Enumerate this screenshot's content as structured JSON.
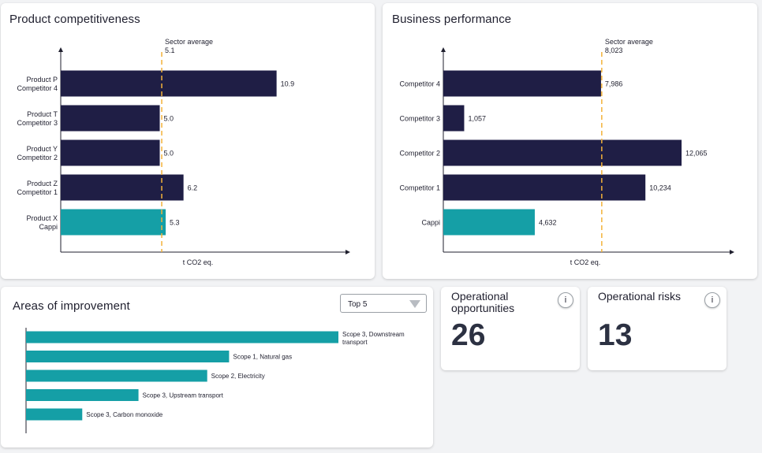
{
  "product_card": {
    "title": "Product competitiveness",
    "axis_label": "t CO2 eq.",
    "sector_label": "Sector average",
    "sector_value": "5.1"
  },
  "business_card": {
    "title": "Business performance",
    "axis_label": "t CO2 eq.",
    "sector_label": "Sector average",
    "sector_value": "8,023"
  },
  "improvement_card": {
    "title": "Areas of improvement",
    "dropdown_value": "Top 5"
  },
  "kpis": {
    "opportunities": {
      "label": "Operational opportunities",
      "value": "26",
      "info": "i"
    },
    "risks": {
      "label": "Operational risks",
      "value": "13",
      "info": "i"
    }
  },
  "colors": {
    "dark_bar": "#1f1e45",
    "teal_bar": "#159fa6",
    "sector_line": "#f3b23a"
  },
  "chart_data": [
    {
      "type": "bar",
      "orientation": "horizontal",
      "title": "Product competitiveness",
      "xlabel": "t CO2 eq.",
      "categories": [
        [
          "Product P",
          "Competitor 4"
        ],
        [
          "Product T",
          "Competitor 3"
        ],
        [
          "Product Y",
          "Competitor 2"
        ],
        [
          "Product Z",
          "Competitor 1"
        ],
        [
          "Product X",
          "Cappi"
        ]
      ],
      "values": [
        10.9,
        5.0,
        5.0,
        6.2,
        5.3
      ],
      "value_labels": [
        "10.9",
        "5.0",
        "5.0",
        "6.2",
        "5.3"
      ],
      "highlight_index": 4,
      "reference_line": {
        "label": "Sector average",
        "value": 5.1
      },
      "xlim": [
        0,
        14.5
      ]
    },
    {
      "type": "bar",
      "orientation": "horizontal",
      "title": "Business performance",
      "xlabel": "t CO2 eq.",
      "categories": [
        [
          "Competitor 4"
        ],
        [
          "Competitor 3"
        ],
        [
          "Competitor 2"
        ],
        [
          "Competitor 1"
        ],
        [
          "Cappi"
        ]
      ],
      "values": [
        7986,
        1057,
        12065,
        10234,
        4632
      ],
      "value_labels": [
        "7,986",
        "1,057",
        "12,065",
        "10,234",
        "4,632"
      ],
      "highlight_index": 4,
      "reference_line": {
        "label": "Sector average",
        "value": 8023
      },
      "xlim": [
        0,
        14700
      ]
    },
    {
      "type": "bar",
      "orientation": "horizontal",
      "title": "Areas of improvement",
      "categories": [
        [
          "Scope 3, Downstream",
          "transport"
        ],
        [
          "Scope 1, Natural gas"
        ],
        [
          "Scope 2, Electricity"
        ],
        [
          "Scope 3, Upstream transport"
        ],
        [
          "Scope 3, Carbon monoxide"
        ]
      ],
      "values": [
        100,
        65,
        58,
        36,
        18
      ],
      "xlim": [
        0,
        100
      ]
    }
  ]
}
